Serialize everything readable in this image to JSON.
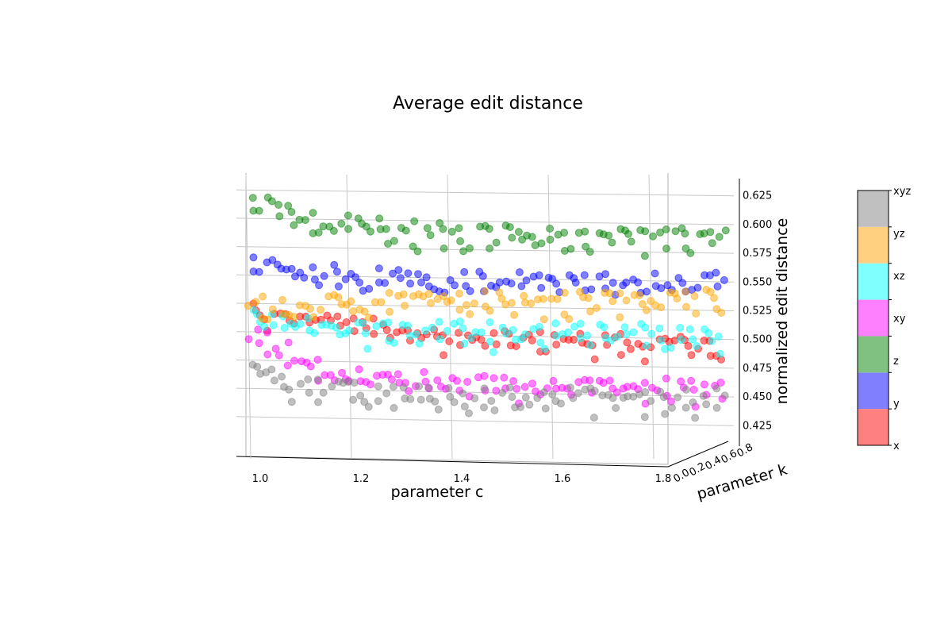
{
  "chart_data": {
    "type": "scatter",
    "title": "Average edit distance",
    "xlabel": "parameter c",
    "ylabel": "parameter k",
    "zlabel": "normalized edit distance",
    "x_ticks": [
      "1.0",
      "1.2",
      "1.4",
      "1.6",
      "1.8"
    ],
    "y_ticks": [
      "0.0",
      "0.2",
      "0.4",
      "0.6",
      "0.8"
    ],
    "z_ticks": [
      "0.425",
      "0.450",
      "0.475",
      "0.500",
      "0.525",
      "0.550",
      "0.575",
      "0.600",
      "0.625"
    ],
    "xlim": [
      0.95,
      1.95
    ],
    "zlim": [
      0.41,
      0.64
    ],
    "grid": true,
    "colorbar_labels": [
      "x",
      "y",
      "z",
      "xy",
      "xz",
      "yz",
      "xyz"
    ],
    "series": [
      {
        "name": "x",
        "color": "#ff0000",
        "x": [
          1.0,
          1.05,
          1.1,
          1.15,
          1.2,
          1.25,
          1.3,
          1.35,
          1.4,
          1.45,
          1.5,
          1.55,
          1.6,
          1.65,
          1.7,
          1.75,
          1.8,
          1.85,
          1.9
        ],
        "z": [
          0.522,
          0.521,
          0.518,
          0.515,
          0.51,
          0.506,
          0.503,
          0.501,
          0.5,
          0.5,
          0.499,
          0.498,
          0.497,
          0.497,
          0.496,
          0.496,
          0.495,
          0.495,
          0.495
        ]
      },
      {
        "name": "y",
        "color": "#0000ff",
        "x": [
          1.0,
          1.05,
          1.1,
          1.15,
          1.2,
          1.25,
          1.3,
          1.35,
          1.4,
          1.45,
          1.5,
          1.55,
          1.6,
          1.65,
          1.7,
          1.75,
          1.8,
          1.85,
          1.9
        ],
        "z": [
          0.562,
          0.558,
          0.556,
          0.555,
          0.554,
          0.553,
          0.552,
          0.551,
          0.551,
          0.551,
          0.551,
          0.55,
          0.55,
          0.55,
          0.549,
          0.55,
          0.551,
          0.55,
          0.551
        ]
      },
      {
        "name": "z",
        "color": "#008000",
        "x": [
          1.0,
          1.05,
          1.1,
          1.15,
          1.2,
          1.25,
          1.3,
          1.35,
          1.4,
          1.45,
          1.5,
          1.55,
          1.6,
          1.65,
          1.7,
          1.75,
          1.8,
          1.85,
          1.9
        ],
        "z": [
          0.615,
          0.608,
          0.603,
          0.6,
          0.598,
          0.596,
          0.594,
          0.592,
          0.59,
          0.589,
          0.589,
          0.588,
          0.588,
          0.587,
          0.587,
          0.588,
          0.587,
          0.587,
          0.588
        ]
      },
      {
        "name": "xy",
        "color": "#ff00ff",
        "x": [
          1.0,
          1.05,
          1.1,
          1.15,
          1.2,
          1.25,
          1.3,
          1.35,
          1.4,
          1.45,
          1.5,
          1.55,
          1.6,
          1.65,
          1.7,
          1.75,
          1.8,
          1.85,
          1.9
        ],
        "z": [
          0.5,
          0.488,
          0.476,
          0.468,
          0.465,
          0.464,
          0.463,
          0.462,
          0.462,
          0.461,
          0.46,
          0.46,
          0.459,
          0.458,
          0.458,
          0.457,
          0.457,
          0.456,
          0.456
        ]
      },
      {
        "name": "xz",
        "color": "#00ffff",
        "x": [
          1.0,
          1.05,
          1.1,
          1.15,
          1.2,
          1.25,
          1.3,
          1.35,
          1.4,
          1.45,
          1.5,
          1.55,
          1.6,
          1.65,
          1.7,
          1.75,
          1.8,
          1.85,
          1.9
        ],
        "z": [
          0.516,
          0.513,
          0.511,
          0.509,
          0.508,
          0.508,
          0.507,
          0.507,
          0.506,
          0.506,
          0.506,
          0.505,
          0.505,
          0.505,
          0.505,
          0.504,
          0.505,
          0.504,
          0.504
        ]
      },
      {
        "name": "yz",
        "color": "#ffa500",
        "x": [
          1.0,
          1.05,
          1.1,
          1.15,
          1.2,
          1.25,
          1.3,
          1.35,
          1.4,
          1.45,
          1.5,
          1.55,
          1.6,
          1.65,
          1.7,
          1.75,
          1.8,
          1.85,
          1.9
        ],
        "z": [
          0.53,
          0.528,
          0.528,
          0.529,
          0.53,
          0.531,
          0.532,
          0.532,
          0.532,
          0.533,
          0.533,
          0.533,
          0.534,
          0.534,
          0.534,
          0.534,
          0.535,
          0.535,
          0.535
        ]
      },
      {
        "name": "xyz",
        "color": "#808080",
        "x": [
          1.0,
          1.05,
          1.1,
          1.15,
          1.2,
          1.25,
          1.3,
          1.35,
          1.4,
          1.45,
          1.5,
          1.55,
          1.6,
          1.65,
          1.7,
          1.75,
          1.8,
          1.85,
          1.9
        ],
        "z": [
          0.47,
          0.463,
          0.458,
          0.455,
          0.453,
          0.452,
          0.451,
          0.451,
          0.45,
          0.45,
          0.45,
          0.449,
          0.449,
          0.449,
          0.449,
          0.448,
          0.448,
          0.448,
          0.448
        ]
      }
    ],
    "colorbar_colors": [
      "#ff8080",
      "#8080ff",
      "#80c080",
      "#ff80ff",
      "#80ffff",
      "#ffd080",
      "#c0c0c0"
    ]
  }
}
